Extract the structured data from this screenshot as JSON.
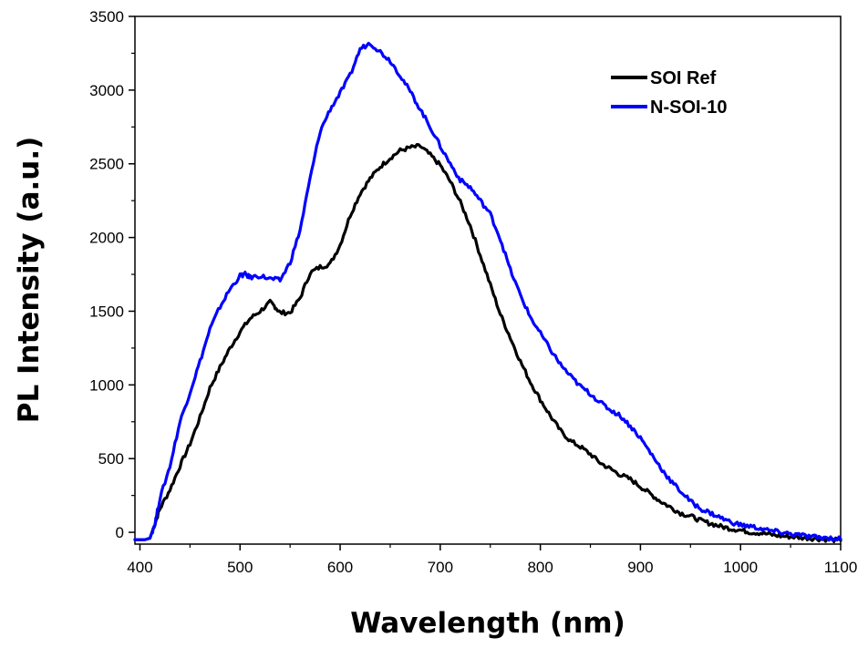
{
  "chart_data": {
    "type": "line",
    "title": "",
    "xlabel": "Wavelength (nm)",
    "ylabel": "PL Intensity (a.u.)",
    "xlim": [
      395,
      1100
    ],
    "ylim": [
      -80,
      3500
    ],
    "x_ticks": [
      400,
      500,
      600,
      700,
      800,
      900,
      1000,
      1100
    ],
    "y_ticks": [
      0,
      500,
      1000,
      1500,
      2000,
      2500,
      3000,
      3500
    ],
    "grid": false,
    "legend_position": "top-right",
    "series": [
      {
        "name": "SOI Ref",
        "color": "#000000",
        "points": [
          [
            395,
            -50
          ],
          [
            405,
            -50
          ],
          [
            410,
            -40
          ],
          [
            415,
            60
          ],
          [
            420,
            160
          ],
          [
            430,
            290
          ],
          [
            440,
            450
          ],
          [
            450,
            600
          ],
          [
            460,
            780
          ],
          [
            470,
            980
          ],
          [
            480,
            1120
          ],
          [
            490,
            1250
          ],
          [
            500,
            1360
          ],
          [
            510,
            1450
          ],
          [
            520,
            1500
          ],
          [
            530,
            1560
          ],
          [
            535,
            1530
          ],
          [
            540,
            1490
          ],
          [
            550,
            1490
          ],
          [
            560,
            1590
          ],
          [
            570,
            1760
          ],
          [
            580,
            1800
          ],
          [
            590,
            1820
          ],
          [
            600,
            1950
          ],
          [
            610,
            2150
          ],
          [
            620,
            2300
          ],
          [
            630,
            2400
          ],
          [
            640,
            2480
          ],
          [
            650,
            2540
          ],
          [
            660,
            2590
          ],
          [
            670,
            2610
          ],
          [
            680,
            2620
          ],
          [
            690,
            2560
          ],
          [
            700,
            2490
          ],
          [
            710,
            2380
          ],
          [
            720,
            2240
          ],
          [
            730,
            2080
          ],
          [
            740,
            1880
          ],
          [
            750,
            1680
          ],
          [
            760,
            1480
          ],
          [
            770,
            1320
          ],
          [
            780,
            1160
          ],
          [
            790,
            1020
          ],
          [
            800,
            900
          ],
          [
            810,
            790
          ],
          [
            820,
            690
          ],
          [
            830,
            620
          ],
          [
            840,
            580
          ],
          [
            850,
            530
          ],
          [
            860,
            470
          ],
          [
            870,
            430
          ],
          [
            880,
            390
          ],
          [
            890,
            360
          ],
          [
            900,
            310
          ],
          [
            910,
            260
          ],
          [
            920,
            210
          ],
          [
            930,
            170
          ],
          [
            940,
            130
          ],
          [
            950,
            110
          ],
          [
            960,
            80
          ],
          [
            970,
            60
          ],
          [
            980,
            40
          ],
          [
            990,
            25
          ],
          [
            1000,
            15
          ],
          [
            1010,
            0
          ],
          [
            1020,
            -5
          ],
          [
            1030,
            -15
          ],
          [
            1040,
            -25
          ],
          [
            1050,
            -30
          ],
          [
            1060,
            -35
          ],
          [
            1070,
            -40
          ],
          [
            1080,
            -45
          ],
          [
            1090,
            -50
          ],
          [
            1100,
            -55
          ]
        ]
      },
      {
        "name": "N-SOI-10",
        "color": "#0000ff",
        "points": [
          [
            395,
            -50
          ],
          [
            405,
            -50
          ],
          [
            410,
            -40
          ],
          [
            415,
            60
          ],
          [
            420,
            230
          ],
          [
            430,
            450
          ],
          [
            440,
            750
          ],
          [
            450,
            950
          ],
          [
            460,
            1160
          ],
          [
            470,
            1380
          ],
          [
            480,
            1530
          ],
          [
            490,
            1650
          ],
          [
            500,
            1740
          ],
          [
            505,
            1750
          ],
          [
            510,
            1730
          ],
          [
            520,
            1740
          ],
          [
            530,
            1720
          ],
          [
            540,
            1710
          ],
          [
            550,
            1830
          ],
          [
            560,
            2050
          ],
          [
            570,
            2400
          ],
          [
            580,
            2720
          ],
          [
            590,
            2870
          ],
          [
            600,
            2980
          ],
          [
            610,
            3100
          ],
          [
            620,
            3280
          ],
          [
            630,
            3320
          ],
          [
            640,
            3260
          ],
          [
            650,
            3200
          ],
          [
            660,
            3100
          ],
          [
            670,
            2990
          ],
          [
            680,
            2870
          ],
          [
            690,
            2750
          ],
          [
            700,
            2620
          ],
          [
            710,
            2500
          ],
          [
            720,
            2390
          ],
          [
            730,
            2340
          ],
          [
            740,
            2250
          ],
          [
            750,
            2160
          ],
          [
            760,
            1990
          ],
          [
            770,
            1780
          ],
          [
            780,
            1610
          ],
          [
            790,
            1460
          ],
          [
            800,
            1350
          ],
          [
            810,
            1240
          ],
          [
            820,
            1140
          ],
          [
            830,
            1060
          ],
          [
            840,
            990
          ],
          [
            850,
            940
          ],
          [
            860,
            880
          ],
          [
            870,
            830
          ],
          [
            880,
            790
          ],
          [
            890,
            720
          ],
          [
            900,
            640
          ],
          [
            910,
            540
          ],
          [
            920,
            440
          ],
          [
            930,
            350
          ],
          [
            940,
            280
          ],
          [
            950,
            210
          ],
          [
            960,
            160
          ],
          [
            970,
            130
          ],
          [
            980,
            100
          ],
          [
            990,
            70
          ],
          [
            1000,
            50
          ],
          [
            1010,
            40
          ],
          [
            1020,
            25
          ],
          [
            1030,
            10
          ],
          [
            1040,
            0
          ],
          [
            1050,
            -10
          ],
          [
            1060,
            -20
          ],
          [
            1070,
            -30
          ],
          [
            1080,
            -35
          ],
          [
            1090,
            -40
          ],
          [
            1100,
            -45
          ]
        ]
      }
    ]
  }
}
